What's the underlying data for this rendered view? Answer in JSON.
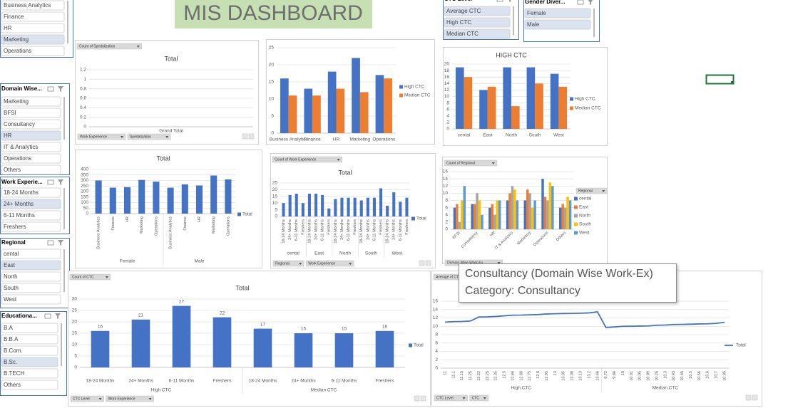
{
  "header": {
    "title": "MIS DASHBOARD"
  },
  "slicers": [
    {
      "items": [
        {
          "label": "Business Analytics"
        },
        {
          "label": "Finance"
        },
        {
          "label": "HR"
        },
        {
          "label": "Marketing",
          "selected": true
        },
        {
          "label": "Operations"
        }
      ]
    },
    {
      "title": "Domain Wise...",
      "items": [
        {
          "label": "Marketing"
        },
        {
          "label": "BFSI"
        },
        {
          "label": "Consultancy"
        },
        {
          "label": "HR",
          "selected": true
        },
        {
          "label": "IT & Analytics"
        },
        {
          "label": "Operations"
        },
        {
          "label": "Others"
        }
      ]
    },
    {
      "title": "Work Experie...",
      "items": [
        {
          "label": "18-24 Months"
        },
        {
          "label": "24+ Months",
          "selected": true
        },
        {
          "label": "6-11 Months"
        },
        {
          "label": "Freshers"
        }
      ]
    },
    {
      "title": "Regional",
      "items": [
        {
          "label": "cental"
        },
        {
          "label": "East",
          "selected": true
        },
        {
          "label": "North"
        },
        {
          "label": "South"
        },
        {
          "label": "West"
        }
      ]
    },
    {
      "title": "Educationa...",
      "items": [
        {
          "label": "B.A"
        },
        {
          "label": "B.B.A"
        },
        {
          "label": "B.Com."
        },
        {
          "label": "B.Sc.",
          "selected": true
        },
        {
          "label": "B.TECH"
        },
        {
          "label": "Others"
        }
      ]
    },
    {
      "title": "CTC Level",
      "items": [
        {
          "label": "Average CTC",
          "selected": true
        },
        {
          "label": "High CTC",
          "selected": true
        },
        {
          "label": "Median CTC",
          "selected": true
        }
      ]
    },
    {
      "title": "Gender Diver...",
      "items": [
        {
          "label": "Female",
          "selected": true
        },
        {
          "label": "Male",
          "selected": true
        }
      ]
    }
  ],
  "chart_data": [
    {
      "type": "bar",
      "title": "Total",
      "top_button": "Count of Spedalization",
      "categories": [
        "Grand Total"
      ],
      "series": [],
      "ylim": [
        0,
        1.2
      ],
      "yticks": [
        0,
        0.2,
        0.4,
        0.6,
        0.8,
        1,
        1.2
      ],
      "grid": true,
      "field_buttons": [
        "Work Experience",
        "Spedalization"
      ]
    },
    {
      "type": "bar",
      "categories": [
        "Business Analytics",
        "Finance",
        "HR",
        "Marketing",
        "Operations"
      ],
      "series": [
        {
          "name": "High CTC",
          "color": "#4472c4",
          "values": [
            16,
            13,
            18,
            22,
            17
          ]
        },
        {
          "name": "Median CTC",
          "color": "#ed7d31",
          "values": [
            11,
            11,
            13,
            12,
            16
          ]
        }
      ],
      "ylim": [
        0,
        25
      ],
      "yticks": [
        0,
        5,
        10,
        15,
        20,
        25
      ],
      "grid": true
    },
    {
      "type": "bar",
      "title": "HIGH CTC",
      "categories": [
        "cental",
        "East",
        "North",
        "South",
        "West"
      ],
      "series": [
        {
          "name": "High CTC",
          "color": "#4472c4",
          "values": [
            19,
            12,
            19,
            19,
            17
          ]
        },
        {
          "name": "Median CTC",
          "color": "#ed7d31",
          "values": [
            16,
            13,
            7,
            14,
            13
          ]
        }
      ],
      "ylim": [
        0,
        20
      ],
      "yticks": [
        0,
        2,
        4,
        6,
        8,
        10,
        12,
        14,
        16,
        18,
        20
      ],
      "grid": true
    },
    {
      "type": "bar",
      "title": "Total",
      "category_groups": [
        {
          "name": "Female",
          "categories": [
            "Business Analytics",
            "Finance",
            "HR",
            "Marketing",
            "Operations"
          ]
        },
        {
          "name": "Male",
          "categories": [
            "Business Analytics",
            "Finance",
            "HR",
            "Marketing",
            "Operations"
          ]
        }
      ],
      "series": [
        {
          "name": "Total",
          "color": "#4472c4",
          "values": [
            300,
            235,
            240,
            305,
            290,
            235,
            265,
            255,
            345,
            310
          ]
        }
      ],
      "ylim": [
        0,
        400
      ],
      "yticks": [
        0,
        50,
        100,
        150,
        200,
        250,
        300,
        350,
        400
      ],
      "grid": true
    },
    {
      "type": "bar",
      "title": "Total",
      "top_button": "Count of Work Experience",
      "category_groups": [
        {
          "name": "cental",
          "categories": [
            "18-24 Months",
            "24+ Months",
            "6-11 Months",
            "Freshers"
          ]
        },
        {
          "name": "East",
          "categories": [
            "18-24 Months",
            "24+ Months",
            "6-11 Months",
            "Freshers"
          ]
        },
        {
          "name": "North",
          "categories": [
            "18-24 Months",
            "24+ Months",
            "6-11 Months",
            "Freshers"
          ]
        },
        {
          "name": "South",
          "categories": [
            "18-24 Months",
            "24+ Months",
            "6-11 Months",
            "Freshers"
          ]
        },
        {
          "name": "West",
          "categories": [
            "18-24 Months",
            "24+ Months",
            "6-11 Months",
            "Freshers"
          ]
        }
      ],
      "series": [
        {
          "name": "Total",
          "color": "#4472c4",
          "values": [
            10,
            16,
            17,
            10,
            17,
            17,
            16,
            6,
            13,
            14,
            14,
            14,
            12,
            14,
            14,
            21,
            8,
            18,
            11,
            14
          ]
        }
      ],
      "ylim": [
        0,
        25
      ],
      "yticks": [
        0,
        5,
        10,
        15,
        20,
        25
      ],
      "grid": true,
      "field_buttons": [
        "Regional",
        "Work Experience"
      ]
    },
    {
      "type": "bar",
      "top_button": "Count of Regional",
      "legend_title": "Regional",
      "categories": [
        "BFSI",
        "Consultancy",
        "HR",
        "IT & Analytics",
        "Marketing",
        "Operations",
        "Others"
      ],
      "series": [
        {
          "name": "cental",
          "color": "#4472c4",
          "values": [
            6,
            7,
            6,
            8,
            8,
            14,
            6
          ]
        },
        {
          "name": "East",
          "color": "#ed7d31",
          "values": [
            7,
            7,
            7,
            10,
            11,
            9,
            7
          ]
        },
        {
          "name": "North",
          "color": "#a5a5a5",
          "values": [
            2,
            10,
            4,
            12,
            10,
            8,
            6
          ]
        },
        {
          "name": "South",
          "color": "#ffc000",
          "values": [
            8,
            8,
            8,
            11,
            6,
            13,
            9
          ]
        },
        {
          "name": "West",
          "color": "#5b9bd5",
          "values": [
            12,
            4,
            8,
            8,
            8,
            12,
            8
          ]
        }
      ],
      "ylim": [
        0,
        16
      ],
      "yticks": [
        0,
        2,
        4,
        6,
        8,
        10,
        12,
        14,
        16
      ],
      "grid": true,
      "field_buttons": [
        "Domain Wise Work-Ex"
      ]
    },
    {
      "type": "bar",
      "title": "Total",
      "top_button": "Count of CTC",
      "data_labels": true,
      "category_groups": [
        {
          "name": "High CTC",
          "categories": [
            "18-24 Months",
            "24+ Months",
            "6-11 Months",
            "Freshers"
          ]
        },
        {
          "name": "Median CTC",
          "categories": [
            "18-24 Months",
            "24+ Months",
            "6-11 Months",
            "Freshers"
          ]
        }
      ],
      "series": [
        {
          "name": "Total",
          "color": "#4472c4",
          "values": [
            16,
            21,
            27,
            22,
            17,
            15,
            15,
            16
          ]
        }
      ],
      "ylim": [
        0,
        30
      ],
      "yticks": [
        0,
        5,
        10,
        15,
        20,
        25,
        30
      ],
      "grid": true,
      "field_buttons": [
        "CTC Level",
        "Work Experience"
      ]
    },
    {
      "type": "line",
      "top_button": "Average of CTC",
      "category_groups": [
        {
          "name": "High CTC",
          "categories": [
            "11",
            "11.1",
            "11.15",
            "11.25",
            "12.22",
            "12.25",
            "12.35",
            "12.5",
            "12.66",
            "12.68",
            "12.75",
            "12.8",
            "12.95",
            "13",
            "13.05",
            "13.08",
            "13.13",
            "13.2",
            "13.46"
          ]
        },
        {
          "name": "Median CTC",
          "categories": [
            "9.72",
            "9.84",
            "10",
            "10.01",
            "10.05",
            "10.09",
            "10.25",
            "10.3",
            "10.43",
            "10.45",
            "10.5",
            "10.56",
            "10.6",
            "10.7",
            "10.95"
          ]
        }
      ],
      "series": [
        {
          "name": "Total",
          "color": "#4472c4",
          "values": [
            11,
            11.1,
            11.15,
            11.25,
            12.22,
            12.25,
            12.35,
            12.5,
            12.66,
            12.68,
            12.75,
            12.8,
            12.95,
            13,
            13.05,
            13.08,
            13.13,
            13.2,
            13.46,
            9.72,
            9.84,
            10,
            10.01,
            10.05,
            10.09,
            10.25,
            10.3,
            10.43,
            10.45,
            10.5,
            10.56,
            10.6,
            10.7,
            10.95
          ]
        }
      ],
      "ylim": [
        0,
        16
      ],
      "yticks": [
        0,
        2,
        4,
        6,
        8,
        10,
        12,
        14,
        16
      ],
      "grid": true,
      "field_buttons": [
        "CTC Level",
        "CTC"
      ]
    }
  ],
  "tooltip": {
    "lines": [
      "Consultancy (Domain Wise Work-Ex)",
      "Category: Consultancy"
    ]
  }
}
